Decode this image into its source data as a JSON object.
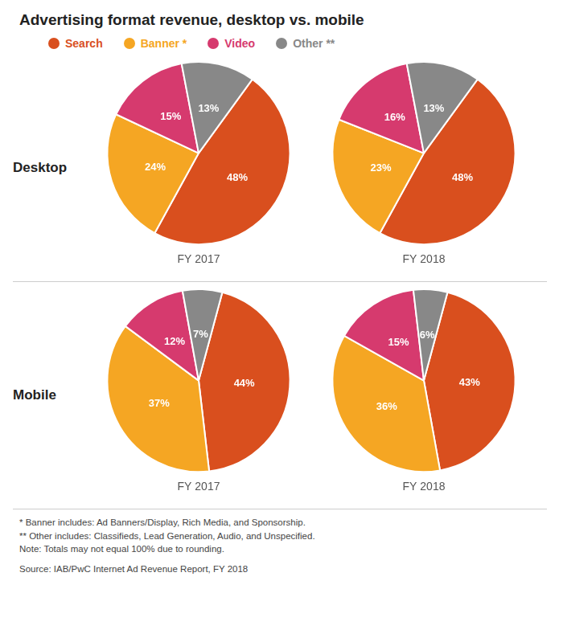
{
  "title": "Advertising format revenue, desktop vs. mobile",
  "annotations": [
    "* Banner includes: Ad Banners/Display, Rich Media, and Sponsorship.",
    "** Other includes: Classifieds, Lead Generation, Audio, and Unspecified.",
    "Note: Totals may not equal 100% due to rounding.",
    "Source: IAB/PwC Internet Ad Revenue Report,  FY 2018"
  ],
  "chart_data": [
    {
      "type": "pie",
      "subtitle": "Desktop",
      "title": "FY 2017",
      "categories": [
        "Search",
        "Banner *",
        "Video",
        "Other **"
      ],
      "colors": [
        "#d94f1e",
        "#f5a623",
        "#d63a6e",
        "#888888"
      ],
      "values": [
        48,
        24,
        15,
        13
      ],
      "value_labels": [
        "48%",
        "24%",
        "15%",
        "13%"
      ],
      "data_labels": true
    },
    {
      "type": "pie",
      "subtitle": "Desktop",
      "title": "FY 2018",
      "categories": [
        "Search",
        "Banner *",
        "Video",
        "Other **"
      ],
      "colors": [
        "#d94f1e",
        "#f5a623",
        "#d63a6e",
        "#888888"
      ],
      "values": [
        48,
        23,
        16,
        13
      ],
      "value_labels": [
        "48%",
        "23%",
        "16%",
        "13%"
      ],
      "data_labels": true
    },
    {
      "type": "pie",
      "subtitle": "Mobile",
      "title": "FY 2017",
      "categories": [
        "Search",
        "Banner *",
        "Video",
        "Other **"
      ],
      "colors": [
        "#d94f1e",
        "#f5a623",
        "#d63a6e",
        "#888888"
      ],
      "values": [
        44,
        37,
        12,
        7
      ],
      "value_labels": [
        "44%",
        "37%",
        "12%",
        "7%"
      ],
      "data_labels": true
    },
    {
      "type": "pie",
      "subtitle": "Mobile",
      "title": "FY 2018",
      "categories": [
        "Search",
        "Banner *",
        "Video",
        "Other **"
      ],
      "colors": [
        "#d94f1e",
        "#f5a623",
        "#d63a6e",
        "#888888"
      ],
      "values": [
        43,
        36,
        15,
        6
      ],
      "value_labels": [
        "43%",
        "36%",
        "15%",
        "6%"
      ],
      "data_labels": true
    }
  ]
}
